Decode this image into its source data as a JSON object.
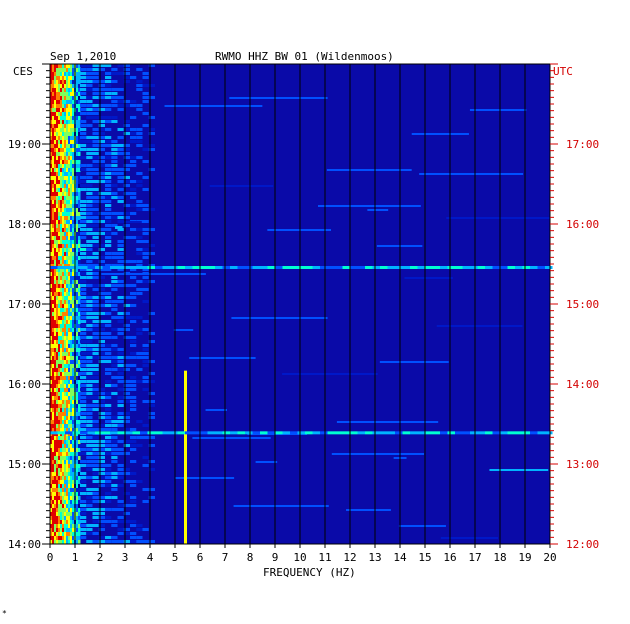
{
  "header": {
    "date": "Sep 1,2010",
    "station": "RWMO HHZ BW 01 (Wildenmoos)"
  },
  "chart_data": {
    "type": "heatmap",
    "title": "RWMO HHZ BW 01 (Wildenmoos)",
    "date": "Sep 1,2010",
    "xlabel": "FREQUENCY (HZ)",
    "x_unit": "HZ",
    "xlim": [
      0,
      20
    ],
    "x_ticks": [
      "0",
      "1",
      "2",
      "3",
      "4",
      "5",
      "6",
      "7",
      "8",
      "9",
      "10",
      "11",
      "12",
      "13",
      "14",
      "15",
      "16",
      "17",
      "18",
      "19",
      "20"
    ],
    "left_axis": {
      "label": "CES",
      "ticks": [
        "14:00",
        "15:00",
        "16:00",
        "17:00",
        "18:00",
        "19:00"
      ],
      "color": "#000000"
    },
    "right_axis": {
      "label": "UTC",
      "ticks": [
        "12:00",
        "13:00",
        "14:00",
        "15:00",
        "16:00",
        "17:00"
      ],
      "color": "#d40000"
    },
    "time_range_ces": [
      "14:00",
      "20:00"
    ],
    "grid": true,
    "colormap": [
      "#00008b",
      "#0018c8",
      "#0050ff",
      "#00b4ff",
      "#00ffd2",
      "#7fff5a",
      "#ffff00",
      "#ff8000",
      "#e00000"
    ],
    "background_color": "#0a0aa8",
    "features": [
      {
        "freq_range": [
          0,
          1.2
        ],
        "time_range_ces": [
          "14:00",
          "20:00"
        ],
        "level": "high",
        "note": "continuous low-frequency energy"
      },
      {
        "freq": 5.4,
        "time_range_ces": [
          "14:00",
          "16:10"
        ],
        "level": "high",
        "note": "narrow spectral line"
      },
      {
        "freq_range": [
          0,
          20
        ],
        "time_ces": "17:27",
        "level": "medium",
        "note": "broadband band"
      },
      {
        "freq_range": [
          0,
          20
        ],
        "time_ces": "15:23",
        "level": "medium",
        "note": "broadband band"
      },
      {
        "freq_range": [
          2.6,
          2.8
        ],
        "time_ces": "17:57",
        "level": "medium",
        "note": "short burst"
      }
    ]
  },
  "footer": {
    "mark": "*"
  }
}
